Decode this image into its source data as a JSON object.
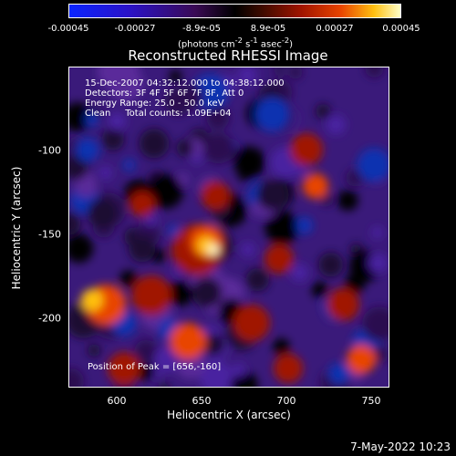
{
  "colorbar": {
    "ticks": [
      "-0.00045",
      "-0.00027",
      "-8.9e-05",
      "8.9e-05",
      "0.00027",
      "0.00045"
    ],
    "unit_html": "(photons cm<sup>-2</sup> s<sup>-1</sup> asec<sup>-2</sup>)"
  },
  "title": "Reconstructed RHESSI Image",
  "info": {
    "time": "15-Dec-2007 04:32:12.000 to 04:38:12.000",
    "detectors": "Detectors: 3F 4F 5F 6F 7F 8F, Att 0",
    "energy": "Energy Range: 25.0 - 50.0 keV",
    "clean": "Clean     Total counts: 1.09E+04"
  },
  "peak_label": "Position of Peak = [656,-160]",
  "axes": {
    "xlabel": "Heliocentric X (arcsec)",
    "ylabel": "Heliocentric Y (arcsec)",
    "xticks": [
      "600",
      "650",
      "700",
      "750"
    ],
    "yticks": [
      "-100",
      "-150",
      "-200"
    ]
  },
  "timestamp": "7-May-2022 10:23",
  "colors": {
    "negative": "#2a12c8",
    "background": "#3a1a7a",
    "hot": "#e84400",
    "peak": "#ffffc8"
  }
}
